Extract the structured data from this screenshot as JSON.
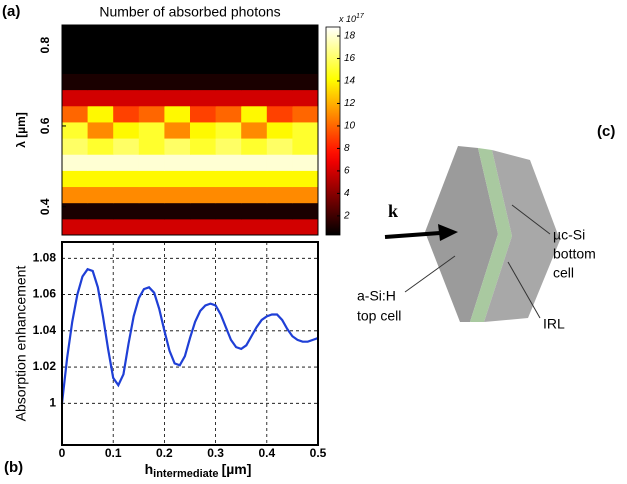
{
  "chart_data": [
    {
      "type": "heatmap",
      "panel_label": "(a)",
      "title": "Number of absorbed photons",
      "ylabel": "λ [µm]",
      "colormap": "hot",
      "x": [
        0.025,
        0.075,
        0.125,
        0.175,
        0.225,
        0.275,
        0.325,
        0.375,
        0.425,
        0.475
      ],
      "y": [
        0.35,
        0.39,
        0.43,
        0.47,
        0.51,
        0.55,
        0.59,
        0.63,
        0.67,
        0.71,
        0.75,
        0.79,
        0.83
      ],
      "values": [
        [
          6,
          6,
          6,
          6,
          6,
          6,
          6,
          6,
          6,
          6
        ],
        [
          1,
          1,
          1,
          1,
          1,
          1,
          1,
          1,
          1,
          1
        ],
        [
          11,
          11,
          11,
          11,
          11,
          11,
          11,
          11,
          11,
          11
        ],
        [
          14,
          14,
          14,
          14,
          14,
          14,
          14,
          14,
          14,
          14
        ],
        [
          18,
          18,
          18,
          18,
          18,
          18,
          18,
          18,
          18,
          18
        ],
        [
          16,
          15,
          16,
          15,
          16,
          15,
          16,
          15,
          16,
          15
        ],
        [
          15,
          11,
          14,
          15,
          11,
          14,
          15,
          11,
          14,
          15
        ],
        [
          10,
          14,
          9,
          10,
          14,
          9,
          10,
          14,
          9,
          10
        ],
        [
          6,
          6,
          6,
          6,
          6,
          6,
          6,
          6,
          6,
          6
        ],
        [
          1,
          1,
          1,
          1,
          1,
          1,
          1,
          1,
          1,
          1
        ],
        [
          0.3,
          0.3,
          0.3,
          0.3,
          0.3,
          0.3,
          0.3,
          0.3,
          0.3,
          0.3
        ],
        [
          0.1,
          0.1,
          0.1,
          0.1,
          0.1,
          0.1,
          0.1,
          0.1,
          0.1,
          0.1
        ],
        [
          0.05,
          0.05,
          0.05,
          0.05,
          0.05,
          0.05,
          0.05,
          0.05,
          0.05,
          0.05
        ]
      ],
      "xlim": [
        0,
        0.5
      ],
      "ylim": [
        0.33,
        0.85
      ],
      "yticks": [
        0.4,
        0.6,
        0.8
      ],
      "colorbar": {
        "lim": [
          0.3,
          18.8
        ],
        "ticks": [
          2,
          4,
          6,
          8,
          10,
          12,
          14,
          16,
          18
        ],
        "multiplier": "x 10",
        "exponent": "17"
      }
    },
    {
      "type": "line",
      "panel_label": "(b)",
      "ylabel": "Absorption enhancement",
      "xlabel": {
        "main": "h",
        "subscript": "intermediate",
        "unit": "[µm]"
      },
      "x": [
        0,
        0.01,
        0.02,
        0.03,
        0.04,
        0.05,
        0.06,
        0.07,
        0.08,
        0.09,
        0.1,
        0.11,
        0.12,
        0.13,
        0.14,
        0.15,
        0.16,
        0.17,
        0.18,
        0.19,
        0.2,
        0.21,
        0.22,
        0.23,
        0.24,
        0.25,
        0.26,
        0.27,
        0.28,
        0.29,
        0.3,
        0.31,
        0.32,
        0.33,
        0.34,
        0.35,
        0.36,
        0.37,
        0.38,
        0.39,
        0.4,
        0.41,
        0.42,
        0.43,
        0.44,
        0.45,
        0.46,
        0.47,
        0.48,
        0.49,
        0.5
      ],
      "series": [
        {
          "color": "#1f3fd6",
          "values": [
            1.0,
            1.025,
            1.045,
            1.06,
            1.07,
            1.074,
            1.073,
            1.064,
            1.048,
            1.03,
            1.014,
            1.01,
            1.016,
            1.033,
            1.048,
            1.058,
            1.063,
            1.064,
            1.061,
            1.052,
            1.04,
            1.029,
            1.022,
            1.021,
            1.026,
            1.036,
            1.045,
            1.051,
            1.054,
            1.055,
            1.054,
            1.049,
            1.042,
            1.035,
            1.031,
            1.03,
            1.032,
            1.037,
            1.042,
            1.046,
            1.048,
            1.049,
            1.049,
            1.046,
            1.041,
            1.037,
            1.035,
            1.034,
            1.034,
            1.035,
            1.036
          ]
        }
      ],
      "xlim": [
        0,
        0.5
      ],
      "ylim": [
        0.977,
        1.089
      ],
      "xticks": [
        0,
        0.1,
        0.2,
        0.3,
        0.4,
        0.5
      ],
      "yticks": [
        1,
        1.02,
        1.04,
        1.06,
        1.08
      ],
      "grid": true
    }
  ],
  "diagram": {
    "panel_label": "(c)",
    "wave_vector": "k",
    "bottom_cell": [
      "µc-Si",
      "bottom",
      "cell"
    ],
    "top_cell": [
      "a-Si:H",
      "top cell"
    ],
    "interlayer": "IRL"
  }
}
